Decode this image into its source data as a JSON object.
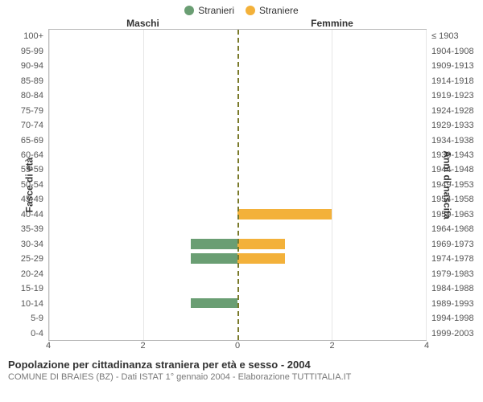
{
  "legend": {
    "male": {
      "label": "Stranieri",
      "color": "#6a9e73"
    },
    "female": {
      "label": "Straniere",
      "color": "#f3b13a"
    }
  },
  "headers": {
    "male": "Maschi",
    "female": "Femmine"
  },
  "axis": {
    "left_title": "Fasce di età",
    "right_title": "Anni di nascita",
    "x_max": 4,
    "x_ticks_left": [
      4,
      2,
      0
    ],
    "x_ticks_right": [
      0,
      2,
      4
    ]
  },
  "bins": [
    {
      "age": "100+",
      "birth": "≤ 1903",
      "m": 0,
      "f": 0
    },
    {
      "age": "95-99",
      "birth": "1904-1908",
      "m": 0,
      "f": 0
    },
    {
      "age": "90-94",
      "birth": "1909-1913",
      "m": 0,
      "f": 0
    },
    {
      "age": "85-89",
      "birth": "1914-1918",
      "m": 0,
      "f": 0
    },
    {
      "age": "80-84",
      "birth": "1919-1923",
      "m": 0,
      "f": 0
    },
    {
      "age": "75-79",
      "birth": "1924-1928",
      "m": 0,
      "f": 0
    },
    {
      "age": "70-74",
      "birth": "1929-1933",
      "m": 0,
      "f": 0
    },
    {
      "age": "65-69",
      "birth": "1934-1938",
      "m": 0,
      "f": 0
    },
    {
      "age": "60-64",
      "birth": "1939-1943",
      "m": 0,
      "f": 0
    },
    {
      "age": "55-59",
      "birth": "1944-1948",
      "m": 0,
      "f": 0
    },
    {
      "age": "50-54",
      "birth": "1949-1953",
      "m": 0,
      "f": 0
    },
    {
      "age": "45-49",
      "birth": "1954-1958",
      "m": 0,
      "f": 0
    },
    {
      "age": "40-44",
      "birth": "1959-1963",
      "m": 0,
      "f": 2
    },
    {
      "age": "35-39",
      "birth": "1964-1968",
      "m": 0,
      "f": 0
    },
    {
      "age": "30-34",
      "birth": "1969-1973",
      "m": 1,
      "f": 1
    },
    {
      "age": "25-29",
      "birth": "1974-1978",
      "m": 1,
      "f": 1
    },
    {
      "age": "20-24",
      "birth": "1979-1983",
      "m": 0,
      "f": 0
    },
    {
      "age": "15-19",
      "birth": "1984-1988",
      "m": 0,
      "f": 0
    },
    {
      "age": "10-14",
      "birth": "1989-1993",
      "m": 1,
      "f": 0
    },
    {
      "age": "5-9",
      "birth": "1994-1998",
      "m": 0,
      "f": 0
    },
    {
      "age": "0-4",
      "birth": "1999-2003",
      "m": 0,
      "f": 0
    }
  ],
  "style": {
    "background": "#ffffff",
    "grid_color": "#e6e6e6",
    "border_color": "#bbbbbb",
    "center_line_color": "#7a7a2a",
    "text_color": "#333333",
    "muted_text_color": "#777777",
    "tick_text_color": "#555555",
    "label_fontsize": 11,
    "axis_title_fontsize": 12,
    "legend_fontsize": 12,
    "title_fontsize": 13,
    "subtitle_fontsize": 11,
    "bar_height_ratio": 0.7
  },
  "footer": {
    "title": "Popolazione per cittadinanza straniera per età e sesso - 2004",
    "subtitle": "COMUNE DI BRAIES (BZ) - Dati ISTAT 1° gennaio 2004 - Elaborazione TUTTITALIA.IT"
  }
}
